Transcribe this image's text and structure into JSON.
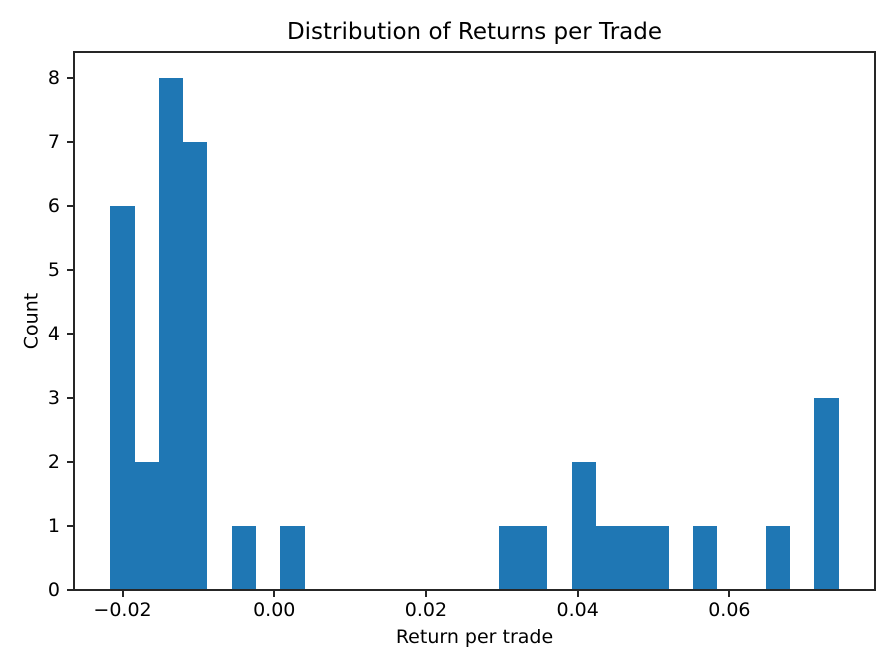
{
  "chart_data": {
    "type": "bar",
    "subtype": "histogram",
    "title": "Distribution of Returns per Trade",
    "xlabel": "Return per trade",
    "ylabel": "Count",
    "bins": {
      "start": -0.0216,
      "width": 0.0032,
      "num_bins": 30
    },
    "counts": [
      6,
      2,
      8,
      7,
      0,
      1,
      0,
      1,
      0,
      0,
      0,
      0,
      0,
      0,
      0,
      0,
      1,
      1,
      0,
      2,
      1,
      1,
      1,
      0,
      1,
      0,
      0,
      1,
      0,
      3
    ],
    "xlim": [
      -0.0264,
      0.0792
    ],
    "ylim": [
      0,
      8.4
    ],
    "xticks": [
      {
        "value": -0.02,
        "label": "−0.02"
      },
      {
        "value": 0.0,
        "label": "0.00"
      },
      {
        "value": 0.02,
        "label": "0.02"
      },
      {
        "value": 0.04,
        "label": "0.04"
      },
      {
        "value": 0.06,
        "label": "0.06"
      }
    ],
    "yticks": [
      {
        "value": 0,
        "label": "0"
      },
      {
        "value": 1,
        "label": "1"
      },
      {
        "value": 2,
        "label": "2"
      },
      {
        "value": 3,
        "label": "3"
      },
      {
        "value": 4,
        "label": "4"
      },
      {
        "value": 5,
        "label": "5"
      },
      {
        "value": 6,
        "label": "6"
      },
      {
        "value": 7,
        "label": "7"
      },
      {
        "value": 8,
        "label": "8"
      }
    ],
    "grid": false,
    "legend": false,
    "colors": {
      "bar": "#1f77b4",
      "axis": "#262626",
      "text": "#000000",
      "background": "#ffffff"
    }
  }
}
